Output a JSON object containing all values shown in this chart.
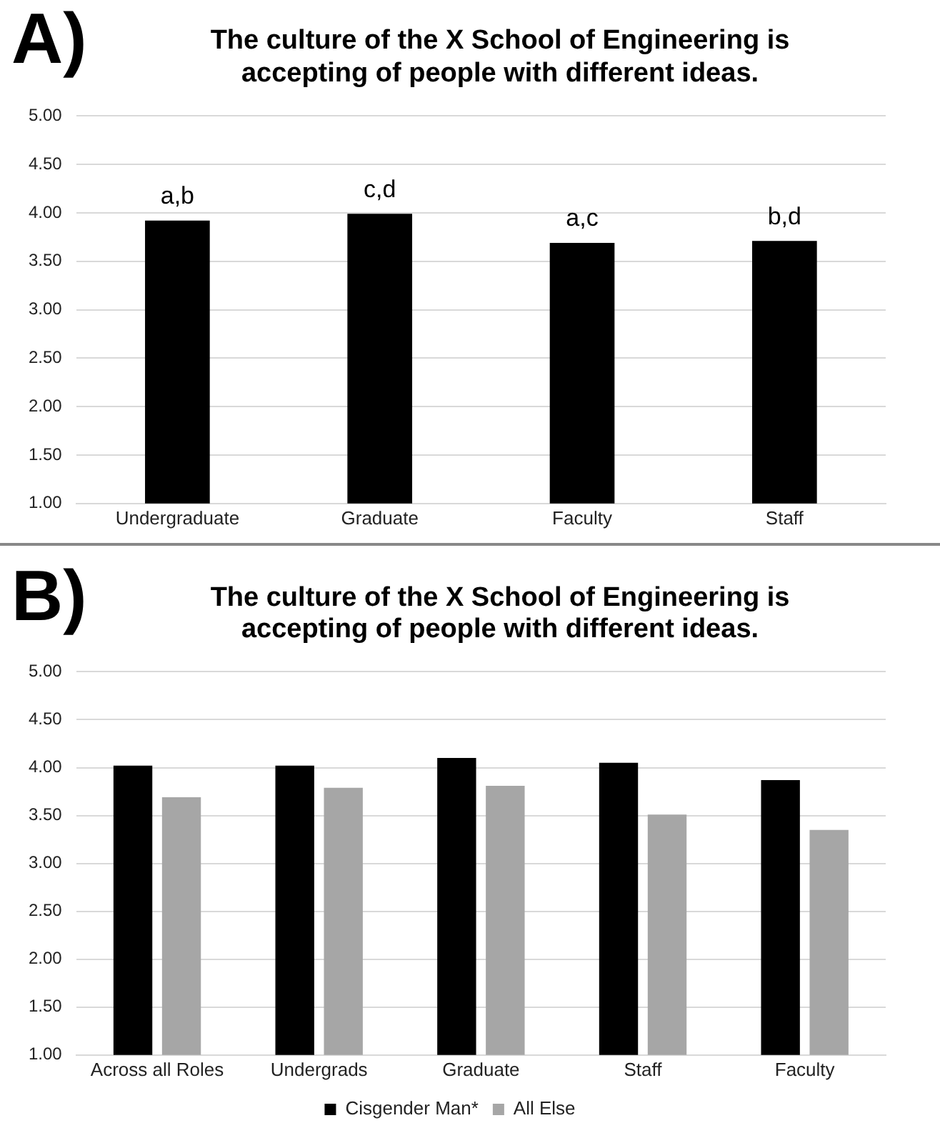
{
  "chart_data": [
    {
      "type": "bar",
      "title": "The culture of the X School of Engineering is accepting of people with different ideas.",
      "categories": [
        "Undergraduate",
        "Graduate",
        "Faculty",
        "Staff"
      ],
      "values": [
        3.92,
        3.99,
        3.69,
        3.71
      ],
      "color": "#000000",
      "ylim": [
        1,
        5
      ],
      "yticks": [
        {
          "value": 1,
          "label": "1.00"
        },
        {
          "value": 1.5,
          "label": "1.50"
        },
        {
          "value": 2,
          "label": "2.00"
        },
        {
          "value": 2.5,
          "label": "2.50"
        },
        {
          "value": 3,
          "label": "3.00"
        },
        {
          "value": 3.5,
          "label": "3.50"
        },
        {
          "value": 4,
          "label": "4.00"
        },
        {
          "value": 4.5,
          "label": "4.50"
        },
        {
          "value": 5,
          "label": "5.00"
        }
      ],
      "grid": "y",
      "legend": false,
      "annotations": [
        "A)",
        {
          "text": "a,b",
          "x": "Undergraduate",
          "y": 3.92
        },
        {
          "text": "c,d",
          "x": "Graduate",
          "y": 3.99
        },
        {
          "text": "a,c",
          "x": "Faculty",
          "y": 3.69
        },
        {
          "text": "b,d",
          "x": "Staff",
          "y": 3.71
        }
      ]
    },
    {
      "type": "bar",
      "title": "The culture of the X School of Engineering is accepting of people with different ideas.",
      "categories": [
        "Across all Roles",
        "Undergrads",
        "Graduate",
        "Staff",
        "Faculty"
      ],
      "series": [
        {
          "name": "Cisgender Man*",
          "color": "#000000",
          "values": [
            4.02,
            4.02,
            4.1,
            4.05,
            3.87
          ]
        },
        {
          "name": "All Else",
          "color": "#a6a6a6",
          "values": [
            3.69,
            3.79,
            3.81,
            3.51,
            3.35
          ]
        }
      ],
      "ylim": [
        1,
        5
      ],
      "yticks": [
        {
          "value": 1,
          "label": "1.00"
        },
        {
          "value": 1.5,
          "label": "1.50"
        },
        {
          "value": 2,
          "label": "2.00"
        },
        {
          "value": 2.5,
          "label": "2.50"
        },
        {
          "value": 3,
          "label": "3.00"
        },
        {
          "value": 3.5,
          "label": "3.50"
        },
        {
          "value": 4,
          "label": "4.00"
        },
        {
          "value": 4.5,
          "label": "4.50"
        },
        {
          "value": 5,
          "label": "5.00"
        }
      ],
      "grid": "y",
      "legend": "bottom",
      "annotations": [
        "B)"
      ]
    }
  ]
}
